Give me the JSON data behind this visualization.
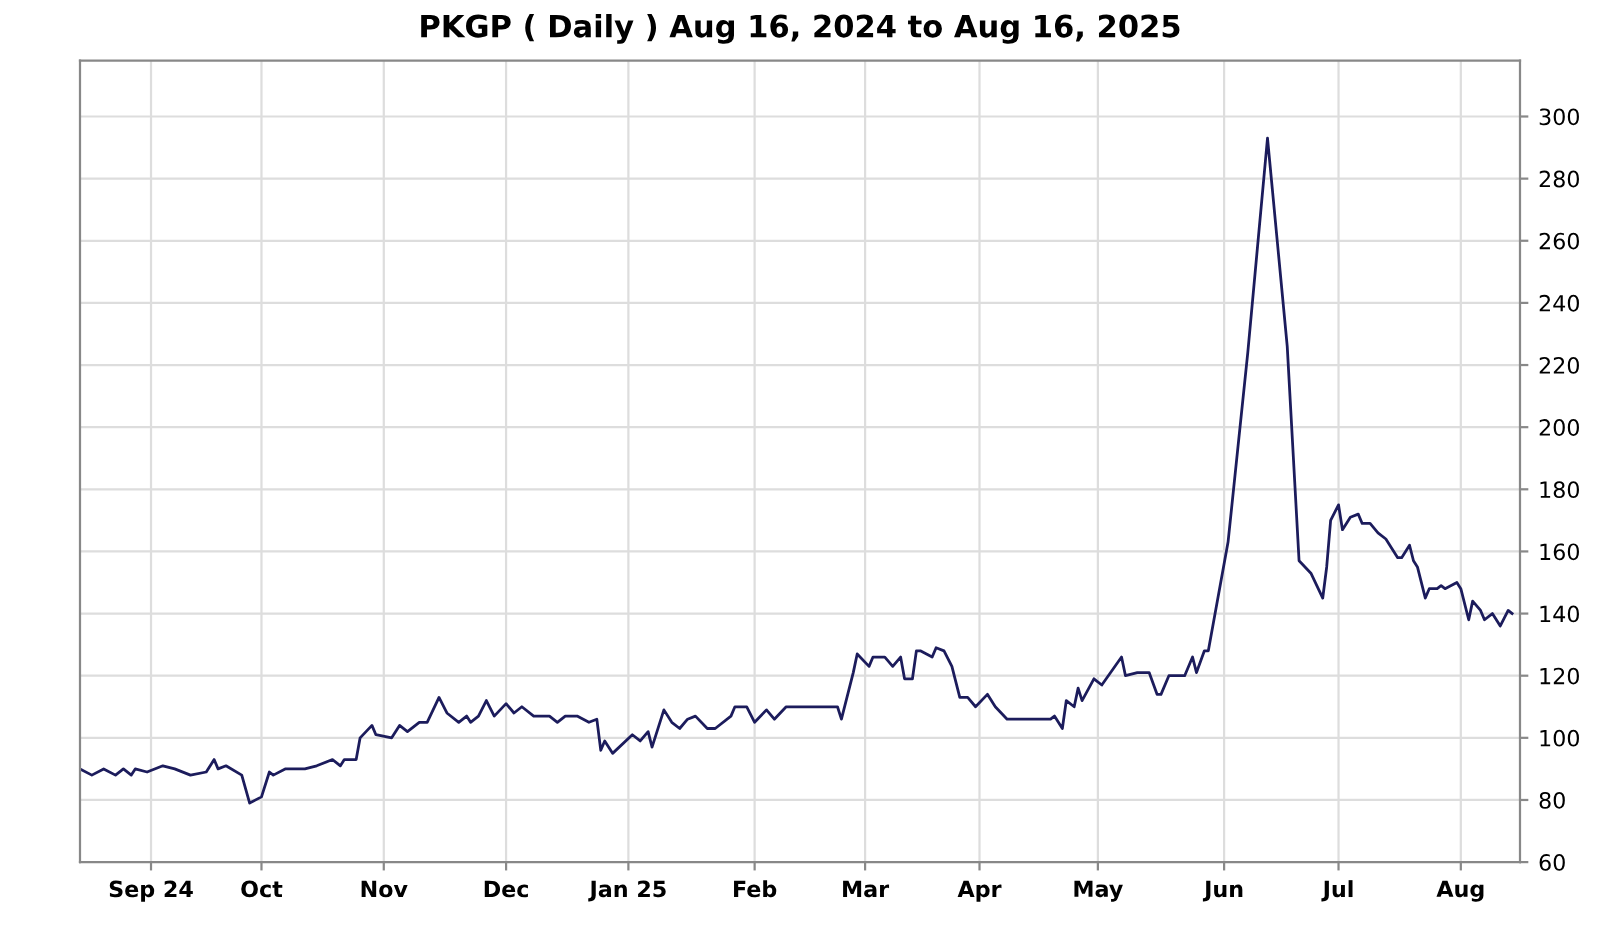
{
  "chart_data": {
    "type": "line",
    "title": "PKGP ( Daily ) Aug 16, 2024 to Aug 16, 2025",
    "x": [
      "2024-08-16",
      "2024-08-19",
      "2024-08-22",
      "2024-08-25",
      "2024-08-27",
      "2024-08-29",
      "2024-08-30",
      "2024-09-02",
      "2024-09-06",
      "2024-09-09",
      "2024-09-13",
      "2024-09-17",
      "2024-09-19",
      "2024-09-20",
      "2024-09-22",
      "2024-09-26",
      "2024-09-28",
      "2024-10-01",
      "2024-10-03",
      "2024-10-04",
      "2024-10-07",
      "2024-10-12",
      "2024-10-15",
      "2024-10-19",
      "2024-10-21",
      "2024-10-22",
      "2024-10-25",
      "2024-10-26",
      "2024-10-29",
      "2024-10-30",
      "2024-11-03",
      "2024-11-05",
      "2024-11-07",
      "2024-11-10",
      "2024-11-12",
      "2024-11-15",
      "2024-11-17",
      "2024-11-20",
      "2024-11-22",
      "2024-11-23",
      "2024-11-25",
      "2024-11-27",
      "2024-11-29",
      "2024-12-02",
      "2024-12-04",
      "2024-12-06",
      "2024-12-09",
      "2024-12-13",
      "2024-12-15",
      "2024-12-17",
      "2024-12-20",
      "2024-12-23",
      "2024-12-25",
      "2024-12-26",
      "2024-12-27",
      "2024-12-29",
      "2025-01-03",
      "2025-01-05",
      "2025-01-07",
      "2025-01-08",
      "2025-01-11",
      "2025-01-13",
      "2025-01-15",
      "2025-01-17",
      "2025-01-19",
      "2025-01-22",
      "2025-01-24",
      "2025-01-28",
      "2025-01-29",
      "2025-02-01",
      "2025-02-03",
      "2025-02-06",
      "2025-02-08",
      "2025-02-11",
      "2025-02-16",
      "2025-02-17",
      "2025-02-24",
      "2025-02-25",
      "2025-02-28",
      "2025-03-01",
      "2025-03-04",
      "2025-03-05",
      "2025-03-08",
      "2025-03-10",
      "2025-03-12",
      "2025-03-13",
      "2025-03-15",
      "2025-03-16",
      "2025-03-17",
      "2025-03-20",
      "2025-03-21",
      "2025-03-23",
      "2025-03-25",
      "2025-03-27",
      "2025-03-29",
      "2025-03-31",
      "2025-04-03",
      "2025-04-05",
      "2025-04-08",
      "2025-04-15",
      "2025-04-19",
      "2025-04-20",
      "2025-04-22",
      "2025-04-23",
      "2025-04-25",
      "2025-04-26",
      "2025-04-27",
      "2025-04-30",
      "2025-05-02",
      "2025-05-07",
      "2025-05-08",
      "2025-05-11",
      "2025-05-14",
      "2025-05-16",
      "2025-05-17",
      "2025-05-19",
      "2025-05-23",
      "2025-05-25",
      "2025-05-26",
      "2025-05-28",
      "2025-05-29",
      "2025-06-03",
      "2025-06-08",
      "2025-06-13",
      "2025-06-18",
      "2025-06-21",
      "2025-06-24",
      "2025-06-27",
      "2025-06-28",
      "2025-06-29",
      "2025-07-01",
      "2025-07-02",
      "2025-07-04",
      "2025-07-06",
      "2025-07-07",
      "2025-07-09",
      "2025-07-11",
      "2025-07-13",
      "2025-07-16",
      "2025-07-17",
      "2025-07-19",
      "2025-07-20",
      "2025-07-21",
      "2025-07-23",
      "2025-07-24",
      "2025-07-26",
      "2025-07-27",
      "2025-07-28",
      "2025-07-31",
      "2025-08-01",
      "2025-08-03",
      "2025-08-04",
      "2025-08-06",
      "2025-08-07",
      "2025-08-09",
      "2025-08-11",
      "2025-08-13",
      "2025-08-14"
    ],
    "series": [
      {
        "color": "#1c1c5c",
        "values": [
          90,
          88,
          90,
          88,
          90,
          88,
          90,
          89,
          91,
          90,
          88,
          89,
          93,
          90,
          91,
          88,
          79,
          81,
          89,
          88,
          90,
          90,
          91,
          93,
          91,
          93,
          93,
          100,
          104,
          101,
          100,
          104,
          102,
          105,
          105,
          113,
          108,
          105,
          107,
          105,
          107,
          112,
          107,
          111,
          108,
          110,
          107,
          107,
          105,
          107,
          107,
          105,
          106,
          96,
          99,
          95,
          101,
          99,
          102,
          97,
          109,
          105,
          103,
          106,
          107,
          103,
          103,
          107,
          110,
          110,
          105,
          109,
          106,
          110,
          110,
          110,
          110,
          106,
          121,
          127,
          123,
          126,
          126,
          123,
          126,
          119,
          119,
          128,
          128,
          126,
          129,
          128,
          123,
          113,
          113,
          110,
          114,
          110,
          106,
          106,
          106,
          107,
          103,
          112,
          110,
          116,
          112,
          119,
          117,
          126,
          120,
          121,
          121,
          114,
          114,
          120,
          120,
          126,
          121,
          128,
          128,
          163,
          224,
          293,
          226,
          157,
          153,
          145,
          155,
          170,
          175,
          167,
          171,
          172,
          169,
          169,
          166,
          164,
          158,
          158,
          162,
          157,
          155,
          145,
          148,
          148,
          149,
          148,
          150,
          148,
          138,
          144,
          141,
          138,
          140,
          136,
          141,
          140
        ]
      }
    ],
    "xlim": [
      "2024-08-16",
      "2025-08-16"
    ],
    "xticks": [
      {
        "value": "2024-09-03",
        "label": "Sep 24"
      },
      {
        "value": "2024-10-01",
        "label": "Oct"
      },
      {
        "value": "2024-11-01",
        "label": "Nov"
      },
      {
        "value": "2024-12-02",
        "label": "Dec"
      },
      {
        "value": "2025-01-02",
        "label": "Jan 25"
      },
      {
        "value": "2025-02-03",
        "label": "Feb"
      },
      {
        "value": "2025-03-03",
        "label": "Mar"
      },
      {
        "value": "2025-04-01",
        "label": "Apr"
      },
      {
        "value": "2025-05-01",
        "label": "May"
      },
      {
        "value": "2025-06-02",
        "label": "Jun"
      },
      {
        "value": "2025-07-01",
        "label": "Jul"
      },
      {
        "value": "2025-08-01",
        "label": "Aug"
      }
    ],
    "ylim": [
      60,
      318
    ],
    "yticks": [
      60,
      80,
      100,
      120,
      140,
      160,
      180,
      200,
      220,
      240,
      260,
      280,
      300
    ],
    "grid": true,
    "marker": "none",
    "line_style": "solid"
  }
}
